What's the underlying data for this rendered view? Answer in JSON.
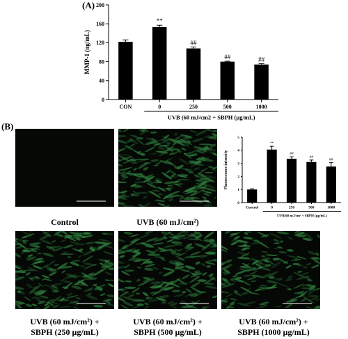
{
  "panel_a_label": "(A)",
  "panel_b_label": "(B)",
  "colors": {
    "bar": "#000000",
    "micro_bg": "#050805",
    "cell": "#2f7d3c",
    "scale_bar": "#ffffff"
  },
  "chart_data": [
    {
      "type": "bar",
      "ylabel": "MMP-1 (ng/mL)",
      "xlabel": "UVB (60 mJ/cm2 + SBPH (µg/mL)",
      "categories": [
        "CON",
        "0",
        "250",
        "500",
        "1000"
      ],
      "values": [
        122,
        153,
        108,
        80,
        74
      ],
      "errors": [
        4,
        4,
        3,
        1,
        2
      ],
      "annotations": [
        "",
        "**",
        "##",
        "##",
        "##"
      ],
      "ylim": [
        0,
        200
      ],
      "yticks": [
        "0",
        "40",
        "80",
        "120",
        "160",
        "200"
      ],
      "grid": false
    },
    {
      "type": "bar",
      "ylabel": "Fluorescence intensity",
      "xlabel": "UVB(60 mJ/cm² + SBPH (µg/mL)",
      "categories": [
        "Control",
        "0",
        "250",
        "500",
        "1000"
      ],
      "values": [
        1.0,
        4.05,
        3.35,
        3.1,
        2.75
      ],
      "errors": [
        0.05,
        0.25,
        0.15,
        0.15,
        0.3
      ],
      "annotations": [
        "",
        "**",
        "##",
        "##",
        "##"
      ],
      "ylim": [
        0,
        5
      ],
      "yticks": [
        "0",
        "1",
        "2",
        "3",
        "4",
        "5"
      ],
      "grid": false
    }
  ],
  "micrographs": [
    {
      "id": "control",
      "caption_lines": [
        "Control"
      ],
      "density": 0.0
    },
    {
      "id": "uvb",
      "caption_lines": [
        "UVB (60 mJ/cm²)"
      ],
      "density": 1.0
    },
    {
      "id": "sbph250",
      "caption_lines": [
        "UVB (60 mJ/cm²) +",
        "SBPH (250 µg/mL)"
      ],
      "density": 0.85
    },
    {
      "id": "sbph500",
      "caption_lines": [
        "UVB (60 mJ/cm²) +",
        "SBPH (500 µg/mL)"
      ],
      "density": 0.8
    },
    {
      "id": "sbph1000",
      "caption_lines": [
        "UVB (60 mJ/cm²) +",
        "SBPH (1000 µg/mL)"
      ],
      "density": 0.7
    }
  ]
}
